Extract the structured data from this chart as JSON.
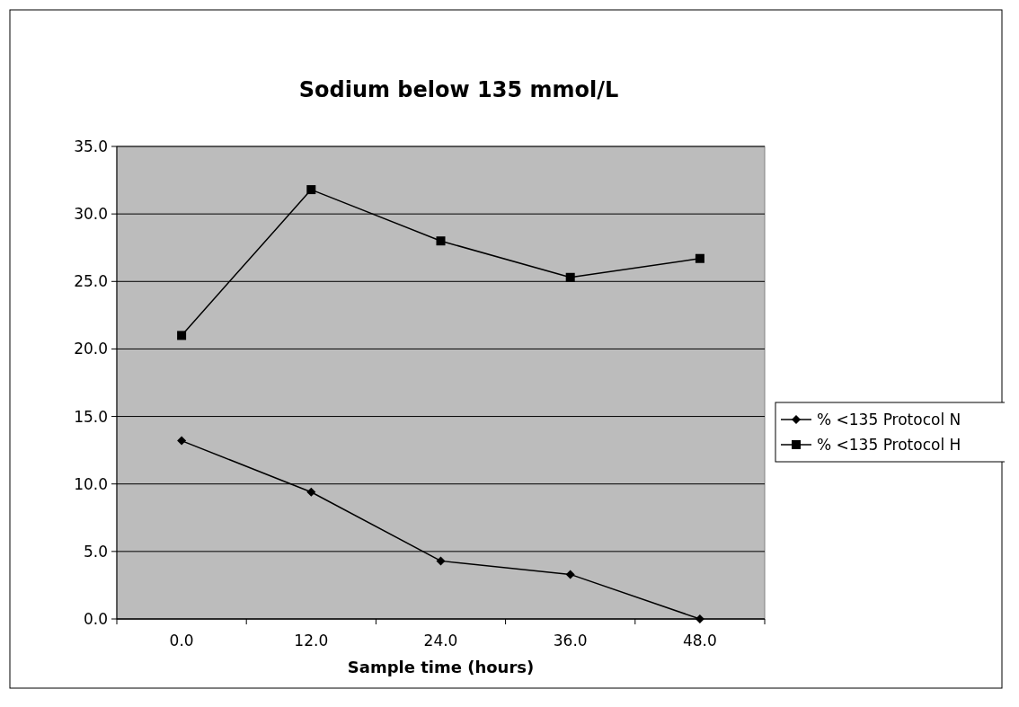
{
  "chart_data": {
    "type": "line",
    "title": "Sodium below 135 mmol/L",
    "xlabel": "Sample time (hours)",
    "categories": [
      "0.0",
      "12.0",
      "24.0",
      "36.0",
      "48.0"
    ],
    "series": [
      {
        "name": "% <135 Protocol N",
        "color": "#000000",
        "marker": "diamond",
        "values": [
          13.2,
          9.4,
          4.3,
          3.3,
          0.0
        ]
      },
      {
        "name": "% <135 Protocol H",
        "color": "#000000",
        "marker": "square",
        "values": [
          21.0,
          31.8,
          28.0,
          25.3,
          26.7
        ]
      }
    ],
    "ylim": [
      0,
      35
    ],
    "yticks": [
      {
        "value": 0,
        "label": "0.0"
      },
      {
        "value": 5,
        "label": "5.0"
      },
      {
        "value": 10,
        "label": "10.0"
      },
      {
        "value": 15,
        "label": "15.0"
      },
      {
        "value": 20,
        "label": "20.0"
      },
      {
        "value": 25,
        "label": "25.0"
      },
      {
        "value": 30,
        "label": "30.0"
      },
      {
        "value": 35,
        "label": "35.0"
      }
    ],
    "grid": "y",
    "legend": "right",
    "line_style": "solid"
  }
}
